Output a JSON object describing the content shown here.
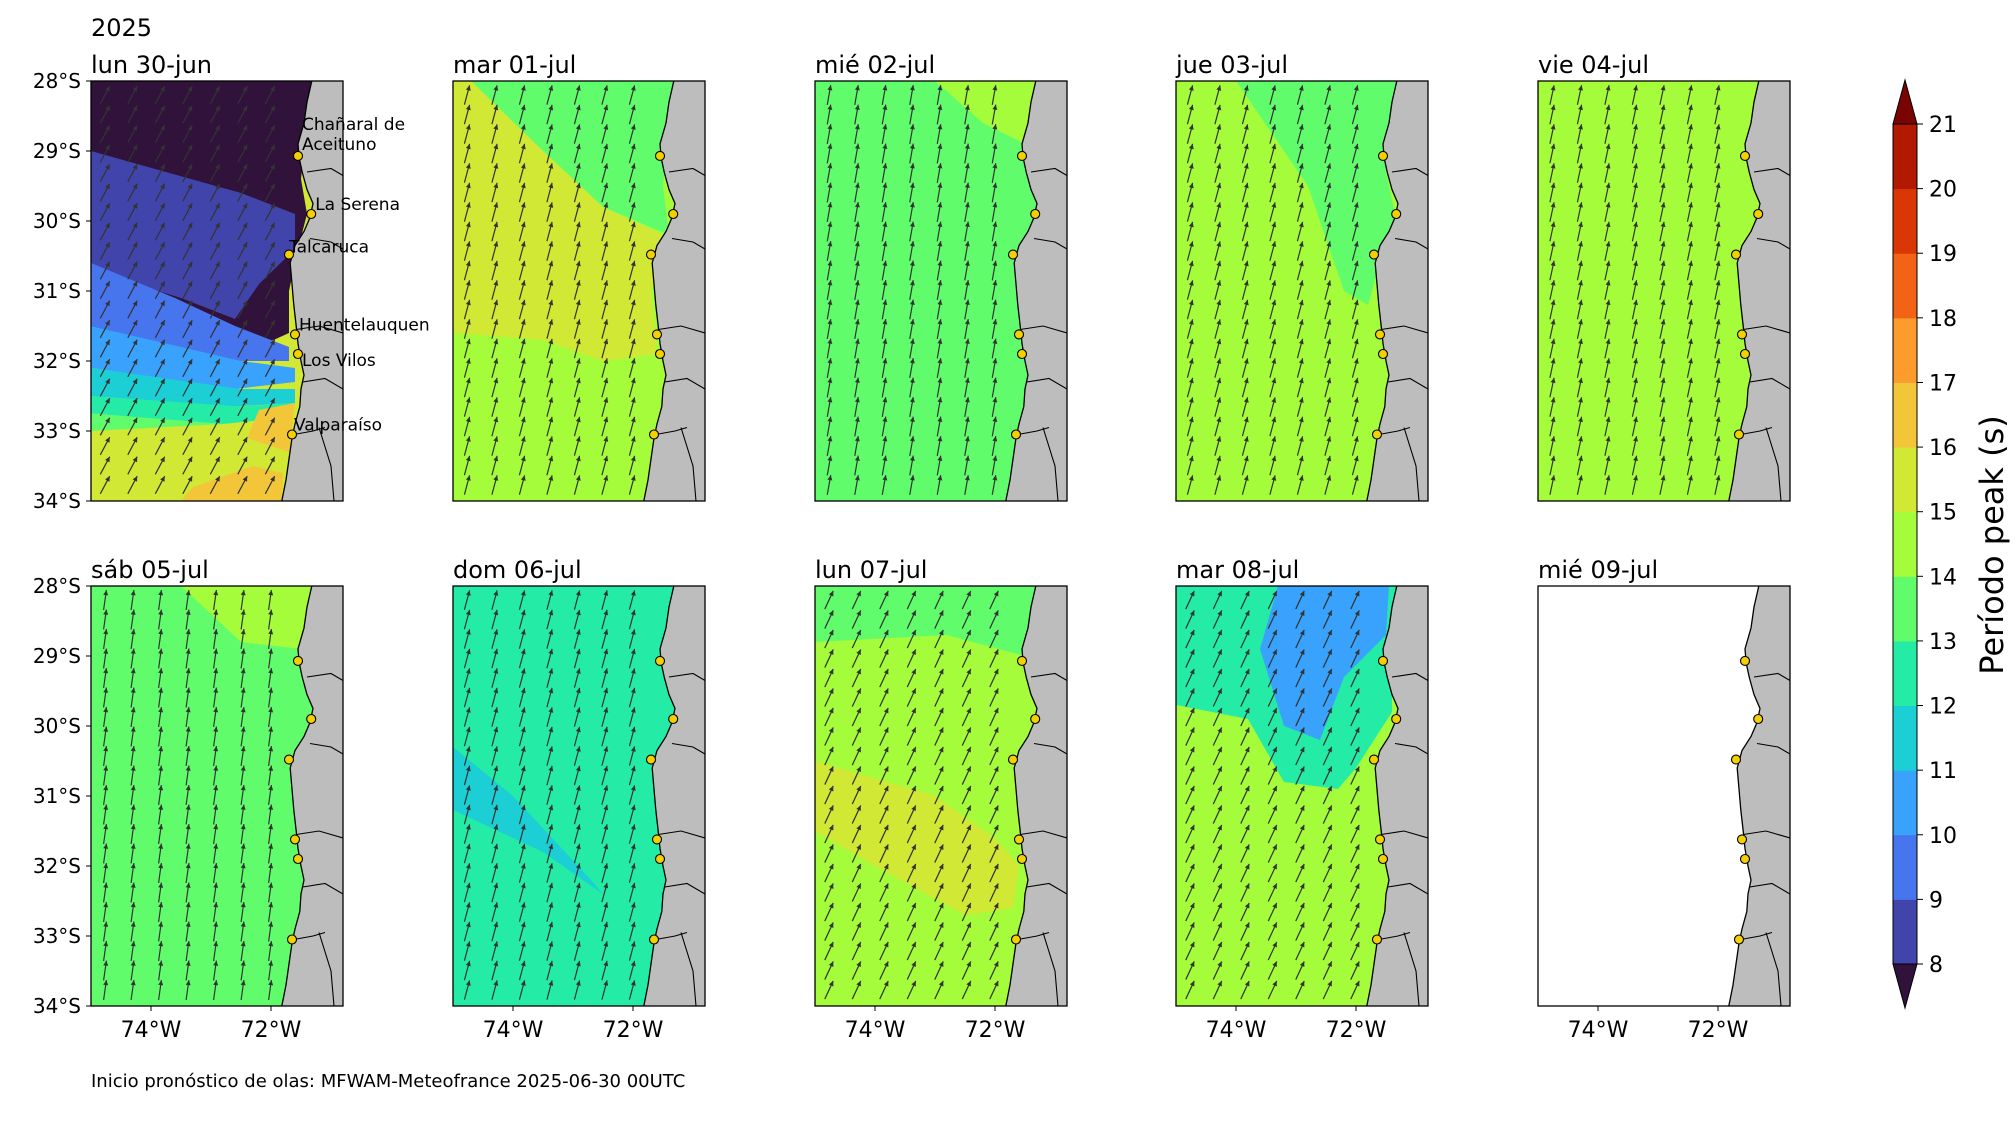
{
  "figure": {
    "year": "2025",
    "footer": "Inicio pronóstico de olas: MFWAM-Meteofrance 2025-06-30 00UTC"
  },
  "axes": {
    "lat_ticks": [
      "28°S",
      "29°S",
      "30°S",
      "31°S",
      "32°S",
      "33°S",
      "34°S"
    ],
    "lon_ticks": [
      "74°W",
      "72°W"
    ]
  },
  "colorbar": {
    "label": "Período peak (s)",
    "ticks": [
      "8",
      "9",
      "10",
      "11",
      "12",
      "13",
      "14",
      "15",
      "16",
      "17",
      "18",
      "19",
      "20",
      "21"
    ],
    "colors": [
      "#30123b",
      "#4145ab",
      "#4675ed",
      "#39a2fc",
      "#1bcfd4",
      "#24eca6",
      "#61fc6c",
      "#a4fc3b",
      "#d1e834",
      "#f3c63a",
      "#fe9b2d",
      "#f36315",
      "#d93806",
      "#b11901",
      "#7a0403"
    ]
  },
  "stations": [
    {
      "name": "Chañaral de Aceituno",
      "lon": -71.55,
      "lat": -29.07
    },
    {
      "name": "La Serena",
      "lon": -71.33,
      "lat": -29.9
    },
    {
      "name": "Talcaruca",
      "lon": -71.7,
      "lat": -30.48
    },
    {
      "name": "Huentelauquen",
      "lon": -71.6,
      "lat": -31.62
    },
    {
      "name": "Los Vilos",
      "lon": -71.55,
      "lat": -31.9
    },
    {
      "name": "Valparaíso",
      "lon": -71.65,
      "lat": -33.05
    }
  ],
  "panels": [
    {
      "title": "lun 30-jun",
      "base": "#d1e834",
      "arrow": -62
    },
    {
      "title": "mar 01-jul",
      "base": "#a4fc3b",
      "arrow": -75
    },
    {
      "title": "mié 02-jul",
      "base": "#61fc6c",
      "arrow": -80
    },
    {
      "title": "jue 03-jul",
      "base": "#a4fc3b",
      "arrow": -75
    },
    {
      "title": "vie 04-jul",
      "base": "#a4fc3b",
      "arrow": -78
    },
    {
      "title": "sáb 05-jul",
      "base": "#61fc6c",
      "arrow": -82
    },
    {
      "title": "dom 06-jul",
      "base": "#24eca6",
      "arrow": -75
    },
    {
      "title": "lun 07-jul",
      "base": "#a4fc3b",
      "arrow": -65
    },
    {
      "title": "mar 08-jul",
      "base": "#a4fc3b",
      "arrow": -65
    },
    {
      "title": "mié 09-jul",
      "base": "#ffffff",
      "arrow": null
    }
  ]
}
